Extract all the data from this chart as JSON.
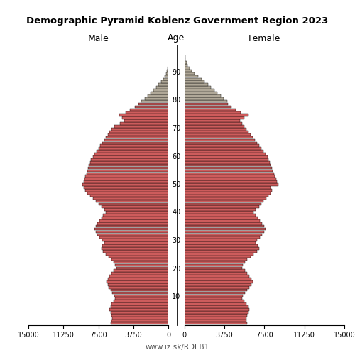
{
  "title": "Demographic Pyramid Koblenz Government Region 2023",
  "label_male": "Male",
  "label_female": "Female",
  "label_age": "Age",
  "watermark": "www.iz.sk/RDEB1",
  "xlim": 15000,
  "color_young": "#cd5c5c",
  "color_old": "#b0a898",
  "edgecolor": "#000000",
  "age_color_threshold": 80,
  "male": [
    6200,
    6100,
    6000,
    6100,
    6200,
    6300,
    6200,
    6100,
    5900,
    5700,
    5800,
    6000,
    6200,
    6400,
    6500,
    6600,
    6500,
    6300,
    6100,
    5900,
    5600,
    5700,
    5900,
    6100,
    6400,
    6700,
    7000,
    7200,
    7100,
    6900,
    7100,
    7400,
    7600,
    7800,
    7900,
    7800,
    7600,
    7400,
    7200,
    7000,
    6700,
    6900,
    7200,
    7500,
    7800,
    8100,
    8400,
    8700,
    8900,
    9100,
    9200,
    9100,
    9000,
    8900,
    8800,
    8700,
    8600,
    8500,
    8400,
    8300,
    8100,
    7900,
    7700,
    7500,
    7300,
    7100,
    6900,
    6700,
    6500,
    6300,
    6100,
    5800,
    5200,
    4700,
    5000,
    5300,
    4600,
    4100,
    3600,
    3200,
    2900,
    2500,
    2200,
    1900,
    1600,
    1300,
    1050,
    800,
    580,
    390,
    250,
    150,
    90,
    50,
    25,
    12,
    6,
    3,
    1,
    0,
    0
  ],
  "female": [
    5900,
    5800,
    5800,
    5900,
    6000,
    6100,
    6000,
    5800,
    5600,
    5400,
    5500,
    5700,
    5900,
    6100,
    6300,
    6400,
    6300,
    6100,
    5900,
    5700,
    5400,
    5500,
    5700,
    5900,
    6200,
    6500,
    6800,
    7000,
    6900,
    6700,
    6800,
    7100,
    7300,
    7500,
    7600,
    7500,
    7300,
    7100,
    6900,
    6700,
    6500,
    6700,
    7000,
    7200,
    7400,
    7700,
    7900,
    8100,
    8200,
    8100,
    8800,
    8700,
    8600,
    8500,
    8400,
    8300,
    8200,
    8100,
    8000,
    7900,
    7800,
    7600,
    7400,
    7200,
    7000,
    6800,
    6600,
    6400,
    6200,
    6000,
    5800,
    5600,
    5400,
    5200,
    5600,
    6000,
    5300,
    4800,
    4400,
    4100,
    4000,
    3700,
    3400,
    3100,
    2800,
    2500,
    2200,
    1900,
    1600,
    1250,
    950,
    700,
    480,
    310,
    185,
    100,
    52,
    24,
    9,
    3,
    1
  ]
}
